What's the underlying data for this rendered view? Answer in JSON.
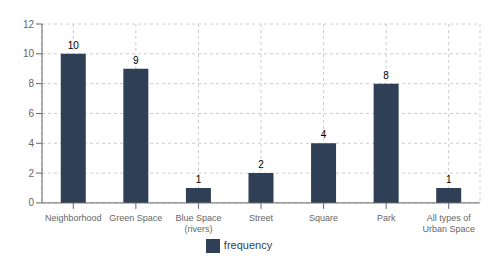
{
  "chart_data": {
    "type": "bar",
    "categories": [
      "Neighborhood",
      "Green Space",
      "Blue Space\n(rivers)",
      "Street",
      "Square",
      "Park",
      "All types of\nUrban Space"
    ],
    "series": [
      {
        "name": "frequency",
        "color": "#2e3f56",
        "values": [
          10,
          9,
          1,
          2,
          4,
          8,
          1
        ]
      }
    ],
    "ylim": [
      0,
      12
    ],
    "yticks": [
      0,
      2,
      4,
      6,
      8,
      10,
      12
    ],
    "grid": true,
    "legend": "bottom",
    "data_labels": true
  }
}
